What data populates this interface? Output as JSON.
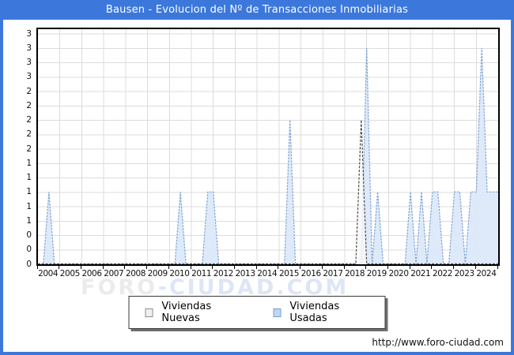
{
  "window": {
    "title": "Bausen - Evolucion del Nº de Transacciones Inmobiliarias",
    "titlebar_color": "#3c78dc"
  },
  "watermark": {
    "part1": "FORO",
    "part2": "-CIUDAD.COM"
  },
  "footer": {
    "url": "http://www.foro-ciudad.com"
  },
  "legend": {
    "items": [
      {
        "label": "Viviendas Nuevas",
        "swatch_fill": "#f0f0f0",
        "swatch_border": "#8c8c8c"
      },
      {
        "label": "Viviendas Usadas",
        "swatch_fill": "#bdd7f2",
        "swatch_border": "#7f9cc4"
      }
    ]
  },
  "chart_data": {
    "type": "area",
    "title": "Bausen - Evolucion del Nº de Transacciones Inmobiliarias",
    "xlabel": "",
    "ylabel": "",
    "x_years": [
      2004,
      2005,
      2006,
      2007,
      2008,
      2009,
      2010,
      2011,
      2012,
      2013,
      2014,
      2015,
      2016,
      2017,
      2018,
      2019,
      2020,
      2021,
      2022,
      2023,
      2024
    ],
    "quarters_per_year": 4,
    "ylim": [
      0,
      3.2
    ],
    "y_tick_step": 0.2,
    "y_tick_labels_bottom_to_top": [
      "0",
      "0",
      "0",
      "1",
      "1",
      "1",
      "1",
      "1",
      "2",
      "2",
      "2",
      "2",
      "2",
      "3",
      "3",
      "3",
      "3"
    ],
    "grid": true,
    "legend_position": "bottom",
    "grid_color": "#dcdcdc",
    "series": [
      {
        "name": "Viviendas Usadas",
        "line_color": "#7fa3d4",
        "fill_color": "rgba(219,232,248,0.92)",
        "dash": "2.5 1.4",
        "points": [
          {
            "year": 2004,
            "q": 3,
            "v": 1
          },
          {
            "year": 2010,
            "q": 3,
            "v": 1
          },
          {
            "year": 2011,
            "q": 4,
            "v": 1
          },
          {
            "year": 2012,
            "q": 1,
            "v": 1
          },
          {
            "year": 2015,
            "q": 3,
            "v": 2
          },
          {
            "year": 2019,
            "q": 1,
            "v": 3
          },
          {
            "year": 2019,
            "q": 3,
            "v": 1
          },
          {
            "year": 2021,
            "q": 1,
            "v": 1
          },
          {
            "year": 2021,
            "q": 3,
            "v": 1
          },
          {
            "year": 2022,
            "q": 1,
            "v": 1
          },
          {
            "year": 2022,
            "q": 2,
            "v": 1
          },
          {
            "year": 2023,
            "q": 1,
            "v": 1
          },
          {
            "year": 2023,
            "q": 2,
            "v": 1
          },
          {
            "year": 2023,
            "q": 4,
            "v": 1
          },
          {
            "year": 2024,
            "q": 1,
            "v": 1
          },
          {
            "year": 2024,
            "q": 2,
            "v": 3
          },
          {
            "year": 2024,
            "q": 3,
            "v": 1
          },
          {
            "year": 2024,
            "q": 4,
            "v": 1
          }
        ],
        "extend_last_value_to_right_edge": true
      },
      {
        "name": "Viviendas Nuevas",
        "line_color": "#4d4d4d",
        "fill_color": "rgba(247,247,247,0.80)",
        "dash": "3 1.8",
        "points": [
          {
            "year": 2018,
            "q": 4,
            "v": 2
          }
        ],
        "extend_last_value_to_right_edge": false
      }
    ]
  }
}
